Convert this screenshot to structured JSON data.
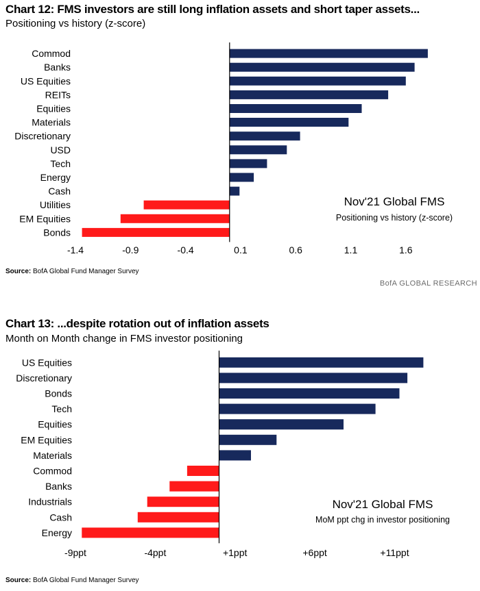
{
  "charts": [
    {
      "title": "Chart 12: FMS investors are still long inflation assets and short taper assets...",
      "subtitle": "Positioning vs history (z-score)",
      "source_label": "Source:",
      "source_text": "BofA Global Fund Manager Survey",
      "brand": "BofA GLOBAL RESEARCH",
      "annotation_title": "Nov'21 Global FMS",
      "annotation_subtitle": "Positioning vs history (z-score)"
    },
    {
      "title": "Chart 13: ...despite rotation out of inflation assets",
      "subtitle": "Month on Month change in FMS investor positioning",
      "source_label": "Source:",
      "source_text": "BofA Global Fund Manager Survey",
      "annotation_title": "Nov'21 Global FMS",
      "annotation_subtitle": "MoM ppt chg in investor positioning"
    }
  ],
  "colors": {
    "positive": "#17295c",
    "negative": "#ff1a1a"
  },
  "chart_data": [
    {
      "type": "bar",
      "orientation": "horizontal",
      "title": "Chart 12: FMS investors are still long inflation assets and short taper assets...",
      "subtitle": "Positioning vs history (z-score)",
      "categories": [
        "Commod",
        "Banks",
        "US Equities",
        "REITs",
        "Equities",
        "Materials",
        "Discretionary",
        "USD",
        "Tech",
        "Energy",
        "Cash",
        "Utilities",
        "EM Equities",
        "Bonds"
      ],
      "values": [
        1.8,
        1.68,
        1.6,
        1.44,
        1.2,
        1.08,
        0.64,
        0.52,
        0.34,
        0.22,
        0.09,
        -0.78,
        -0.99,
        -1.34
      ],
      "xlim": [
        -1.4,
        1.9
      ],
      "xticks": [
        -1.4,
        -0.9,
        -0.4,
        0.1,
        0.6,
        1.1,
        1.6
      ],
      "xtick_labels": [
        "-1.4",
        "-0.9",
        "-0.4",
        "0.1",
        "0.6",
        "1.1",
        "1.6"
      ],
      "grid": false
    },
    {
      "type": "bar",
      "orientation": "horizontal",
      "title": "Chart 13: ...despite rotation out of inflation assets",
      "subtitle": "Month on Month change in FMS investor positioning",
      "categories": [
        "US Equities",
        "Discretionary",
        "Bonds",
        "Tech",
        "Equities",
        "EM Equities",
        "Materials",
        "Commod",
        "Banks",
        "Industrials",
        "Cash",
        "Energy"
      ],
      "values": [
        12.8,
        11.8,
        11.3,
        9.8,
        7.8,
        3.6,
        2.0,
        -2.0,
        -3.1,
        -4.5,
        -5.1,
        -8.6
      ],
      "xlim": [
        -9,
        13
      ],
      "xticks": [
        -9,
        -4,
        1,
        6,
        11
      ],
      "xtick_labels": [
        "-9ppt",
        "-4ppt",
        "+1ppt",
        "+6ppt",
        "+11ppt"
      ],
      "grid": false
    }
  ]
}
